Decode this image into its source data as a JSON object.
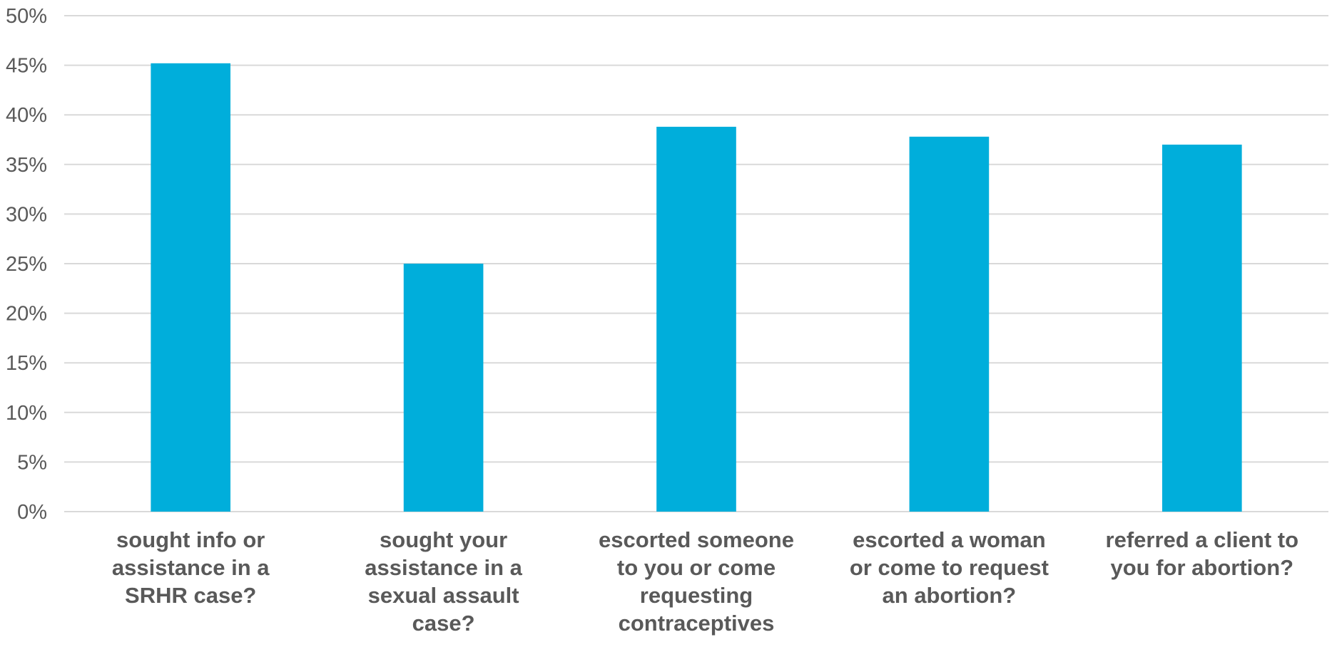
{
  "chart_data": {
    "type": "bar",
    "categories": [
      [
        "sought info or",
        "assistance in a",
        "SRHR case?"
      ],
      [
        "sought your",
        "assistance in a",
        "sexual assault",
        "case?"
      ],
      [
        "escorted someone",
        "to you or come",
        "requesting",
        "contraceptives"
      ],
      [
        "escorted a woman",
        "or come to request",
        "an abortion?"
      ],
      [
        "referred a client to",
        "you for abortion?"
      ]
    ],
    "series": [
      {
        "values": [
          0.452,
          0.25,
          0.388,
          0.378,
          0.37
        ]
      }
    ],
    "ylim": [
      0,
      0.5
    ],
    "yticks": [
      0,
      0.05,
      0.1,
      0.15,
      0.2,
      0.25,
      0.3,
      0.35,
      0.4,
      0.45,
      0.5
    ],
    "ytick_labels": [
      "0%",
      "5%",
      "10%",
      "15%",
      "20%",
      "25%",
      "30%",
      "35%",
      "40%",
      "45%",
      "50%"
    ],
    "grid": true,
    "legend": "none",
    "bar_color": "#00AEDB",
    "title": "",
    "xlabel": "",
    "ylabel": ""
  }
}
